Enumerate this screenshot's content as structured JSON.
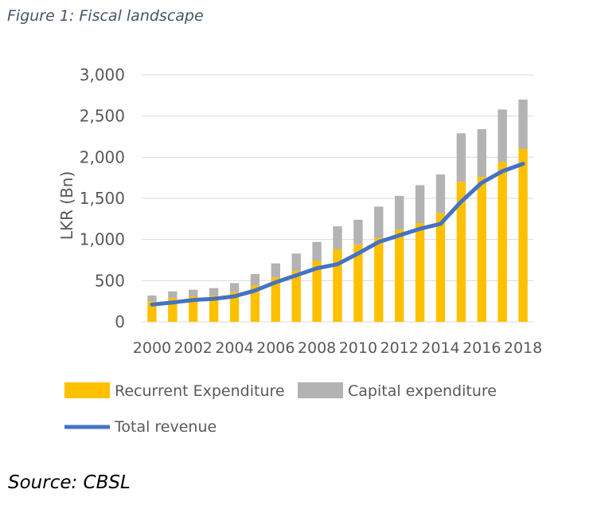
{
  "figure_title": "Figure 1: Fiscal landscape",
  "source": "Source: CBSL",
  "colors": {
    "recurrent": "#ffc000",
    "capital": "#b3b3b3",
    "revenue": "#4472c4",
    "axis_text": "#595959",
    "grid": "#d9d9d9",
    "title": "#44546a"
  },
  "chart_data": {
    "type": "bar",
    "stacked": true,
    "title": "",
    "xlabel": "",
    "ylabel": "LKR (Bn)",
    "ylim": [
      0,
      3000
    ],
    "y_ticks": [
      0,
      500,
      1000,
      1500,
      2000,
      2500,
      3000
    ],
    "y_tick_labels": [
      "0",
      "500",
      "1,000",
      "1,500",
      "2,000",
      "2,500",
      "3,000"
    ],
    "grid": true,
    "categories": [
      "2000",
      "2001",
      "2002",
      "2003",
      "2004",
      "2005",
      "2006",
      "2007",
      "2008",
      "2009",
      "2010",
      "2011",
      "2012",
      "2013",
      "2014",
      "2015",
      "2016",
      "2017",
      "2018"
    ],
    "x_tick_labels": [
      "2000",
      "2002",
      "2004",
      "2006",
      "2008",
      "2010",
      "2012",
      "2014",
      "2016",
      "2018"
    ],
    "series": [
      {
        "name": "Recurrent Expenditure",
        "kind": "bar",
        "values": [
          250,
          290,
          310,
          320,
          360,
          440,
          540,
          620,
          740,
          880,
          940,
          1020,
          1120,
          1200,
          1320,
          1700,
          1760,
          1940,
          2100
        ]
      },
      {
        "name": "Capital expenditure",
        "kind": "bar",
        "values": [
          70,
          80,
          80,
          90,
          110,
          140,
          170,
          210,
          230,
          280,
          300,
          380,
          410,
          460,
          470,
          590,
          580,
          640,
          600
        ]
      },
      {
        "name": "Total revenue",
        "kind": "line",
        "values": [
          210,
          235,
          265,
          280,
          310,
          380,
          480,
          565,
          650,
          700,
          830,
          970,
          1050,
          1130,
          1190,
          1460,
          1690,
          1830,
          1920
        ]
      }
    ],
    "legend_position": "bottom"
  }
}
